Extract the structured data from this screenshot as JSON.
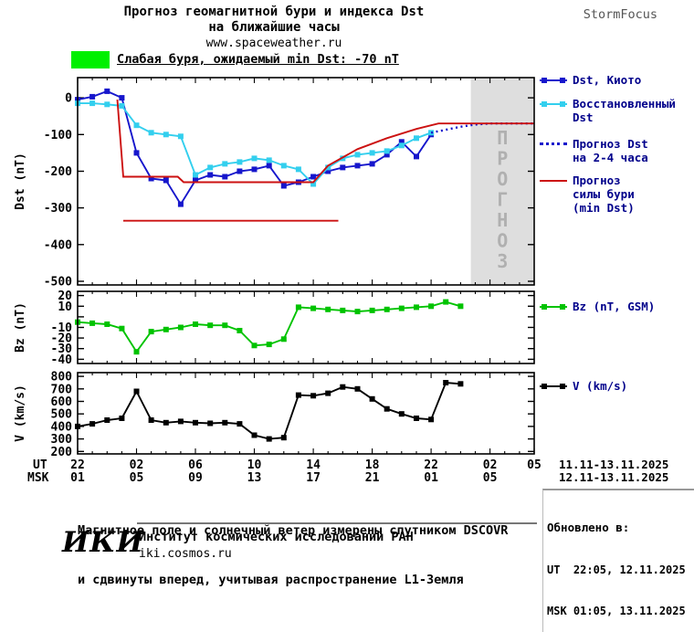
{
  "header": {
    "line1": "Прогноз геомагнитной бури и индекса Dst",
    "line2": "на ближайшие часы",
    "site": "www.spaceweather.ru",
    "brand": "StormFocus"
  },
  "storm_banner": {
    "text": "Слабая буря, ожидаемый min Dst: -70 nT",
    "level_color": "#00f000"
  },
  "chart_data": {
    "type": "line",
    "title": "Прогноз геомагнитной бури и индекса Dst на ближайшие часы",
    "x_hours_range": [
      0,
      31
    ],
    "forecast_band": {
      "from_h": 26.7,
      "to_h": 31,
      "label": "ПРОГНОЗ",
      "fill": "#dedede",
      "text_color": "#b0b0b0"
    },
    "x_axis": {
      "row1_label": "UT",
      "row2_label": "MSK",
      "ticks": [
        {
          "h": 0,
          "ut": "22",
          "msk": "01"
        },
        {
          "h": 4,
          "ut": "02",
          "msk": "05"
        },
        {
          "h": 8,
          "ut": "06",
          "msk": "09"
        },
        {
          "h": 12,
          "ut": "10",
          "msk": "13"
        },
        {
          "h": 16,
          "ut": "14",
          "msk": "17"
        },
        {
          "h": 20,
          "ut": "18",
          "msk": "21"
        },
        {
          "h": 24,
          "ut": "22",
          "msk": "01"
        },
        {
          "h": 28,
          "ut": "02",
          "msk": "05"
        },
        {
          "h": 31,
          "ut": "05",
          "msk": ""
        }
      ],
      "row1_date": "11.11-13.11.2025",
      "row2_date": "12.11-13.11.2025"
    },
    "panels": [
      {
        "id": "dst",
        "ylabel": "Dst (nT)",
        "ylim": [
          -500,
          0
        ],
        "yticks": [
          {
            "v": 0,
            "label": "0"
          },
          {
            "v": -100,
            "label": "-100"
          },
          {
            "v": -200,
            "label": "-200"
          },
          {
            "v": -300,
            "label": "-300"
          },
          {
            "v": -400,
            "label": "-400"
          },
          {
            "v": -500,
            "label": "-500"
          }
        ],
        "series": [
          {
            "name": "dst_kyoto",
            "label": "Dst, Киото",
            "color": "#1616cc",
            "marker": "square",
            "points": [
              [
                0,
                -5
              ],
              [
                1,
                3
              ],
              [
                2,
                18
              ],
              [
                3,
                0
              ],
              [
                4,
                -150
              ],
              [
                5,
                -220
              ],
              [
                6,
                -225
              ],
              [
                7,
                -290
              ],
              [
                8,
                -225
              ],
              [
                9,
                -210
              ],
              [
                10,
                -215
              ],
              [
                11,
                -200
              ],
              [
                12,
                -195
              ],
              [
                13,
                -185
              ],
              [
                14,
                -240
              ],
              [
                15,
                -230
              ],
              [
                16,
                -215
              ],
              [
                17,
                -200
              ],
              [
                18,
                -190
              ],
              [
                19,
                -185
              ],
              [
                20,
                -180
              ],
              [
                21,
                -155
              ],
              [
                22,
                -120
              ],
              [
                23,
                -160
              ],
              [
                24,
                -100
              ]
            ]
          },
          {
            "name": "dst_reconstructed",
            "label": "Восстановленный Dst",
            "color": "#33cfee",
            "marker": "square",
            "points": [
              [
                0,
                -15
              ],
              [
                1,
                -15
              ],
              [
                2,
                -18
              ],
              [
                3,
                -22
              ],
              [
                4,
                -75
              ],
              [
                5,
                -95
              ],
              [
                6,
                -100
              ],
              [
                7,
                -105
              ],
              [
                8,
                -210
              ],
              [
                9,
                -190
              ],
              [
                10,
                -180
              ],
              [
                11,
                -175
              ],
              [
                12,
                -165
              ],
              [
                13,
                -170
              ],
              [
                14,
                -185
              ],
              [
                15,
                -195
              ],
              [
                16,
                -235
              ],
              [
                17,
                -190
              ],
              [
                18,
                -165
              ],
              [
                19,
                -155
              ],
              [
                20,
                -150
              ],
              [
                21,
                -145
              ],
              [
                22,
                -130
              ],
              [
                23,
                -110
              ],
              [
                24,
                -95
              ]
            ]
          },
          {
            "name": "dst_forecast_2_4h",
            "label": "Прогноз Dst на 2-4 часа",
            "color": "#1616cc",
            "style": "dotted",
            "points": [
              [
                24,
                -95
              ],
              [
                25,
                -87
              ],
              [
                26,
                -79
              ],
              [
                27,
                -73
              ],
              [
                28,
                -70
              ],
              [
                31,
                -70
              ]
            ]
          },
          {
            "name": "storm_forecast",
            "label": "Прогноз силы бури (min Dst)",
            "color": "#cc1111",
            "points": [
              [
                2.7,
                -5
              ],
              [
                3.1,
                -215
              ],
              [
                6.8,
                -215
              ],
              [
                7.2,
                -230
              ],
              [
                16,
                -230
              ],
              [
                17,
                -185
              ],
              [
                19,
                -140
              ],
              [
                21,
                -110
              ],
              [
                23,
                -85
              ],
              [
                24.5,
                -70
              ],
              [
                31,
                -70
              ]
            ]
          },
          {
            "name": "storm_min_line",
            "label": "min Dst",
            "color": "#cc1111",
            "points": [
              [
                3.1,
                -335
              ],
              [
                17.7,
                -335
              ]
            ]
          }
        ]
      },
      {
        "id": "bz",
        "ylabel": "Bz (nT)",
        "ylim": [
          -40,
          20
        ],
        "yticks": [
          {
            "v": 20,
            "label": "20"
          },
          {
            "v": 10,
            "label": "10"
          },
          {
            "v": 0,
            "label": ""
          },
          {
            "v": -10,
            "label": "-10"
          },
          {
            "v": -20,
            "label": "-20"
          },
          {
            "v": -30,
            "label": "-30"
          },
          {
            "v": -40,
            "label": "-40"
          }
        ],
        "series": [
          {
            "name": "bz_gsm",
            "label": "Bz (nT, GSM)",
            "color": "#00c300",
            "marker": "square",
            "points": [
              [
                0,
                -5
              ],
              [
                1,
                -6
              ],
              [
                2,
                -7
              ],
              [
                3,
                -11
              ],
              [
                4,
                -33
              ],
              [
                5,
                -14
              ],
              [
                6,
                -12
              ],
              [
                7,
                -10
              ],
              [
                8,
                -7
              ],
              [
                9,
                -8
              ],
              [
                10,
                -8
              ],
              [
                11,
                -13
              ],
              [
                12,
                -27
              ],
              [
                13,
                -26
              ],
              [
                14,
                -21
              ],
              [
                15,
                9
              ],
              [
                16,
                8
              ],
              [
                17,
                7
              ],
              [
                18,
                6
              ],
              [
                19,
                5
              ],
              [
                20,
                6
              ],
              [
                21,
                7
              ],
              [
                22,
                8
              ],
              [
                23,
                9
              ],
              [
                24,
                10
              ],
              [
                25,
                14
              ],
              [
                26,
                10
              ]
            ]
          }
        ]
      },
      {
        "id": "v",
        "ylabel": "V (km/s)",
        "ylim": [
          200,
          800
        ],
        "yticks": [
          {
            "v": 800,
            "label": "800"
          },
          {
            "v": 700,
            "label": "700"
          },
          {
            "v": 600,
            "label": "600"
          },
          {
            "v": 500,
            "label": "500"
          },
          {
            "v": 400,
            "label": "400"
          },
          {
            "v": 300,
            "label": "300"
          },
          {
            "v": 200,
            "label": "200"
          }
        ],
        "series": [
          {
            "name": "v_sw",
            "label": "V (km/s)",
            "color": "#000000",
            "marker": "square",
            "points": [
              [
                0,
                400
              ],
              [
                1,
                420
              ],
              [
                2,
                450
              ],
              [
                3,
                465
              ],
              [
                4,
                680
              ],
              [
                5,
                450
              ],
              [
                6,
                430
              ],
              [
                7,
                440
              ],
              [
                8,
                430
              ],
              [
                9,
                425
              ],
              [
                10,
                430
              ],
              [
                11,
                420
              ],
              [
                12,
                330
              ],
              [
                13,
                300
              ],
              [
                14,
                310
              ],
              [
                15,
                650
              ],
              [
                16,
                645
              ],
              [
                17,
                665
              ],
              [
                18,
                715
              ],
              [
                19,
                700
              ],
              [
                20,
                620
              ],
              [
                21,
                540
              ],
              [
                22,
                500
              ],
              [
                23,
                465
              ],
              [
                24,
                455
              ],
              [
                25,
                750
              ],
              [
                26,
                740
              ]
            ]
          }
        ]
      }
    ],
    "legend": [
      {
        "series": "dst_kyoto",
        "sample": "squares",
        "lines": [
          "Dst, Киото"
        ]
      },
      {
        "series": "dst_reconstructed",
        "sample": "squares",
        "lines": [
          "Восстановленный",
          "Dst"
        ]
      },
      {
        "series": "dst_forecast_2_4h",
        "sample": "dotted",
        "lines": [
          "Прогноз Dst",
          "на 2-4 часа"
        ]
      },
      {
        "series": "storm_forecast",
        "sample": "line",
        "lines": [
          "Прогноз",
          "силы бури",
          "(min Dst)"
        ]
      },
      {
        "series": "bz_gsm",
        "sample": "squares",
        "lines": [
          "Bz (nT, GSM)"
        ]
      },
      {
        "series": "v_sw",
        "sample": "squares",
        "lines": [
          "V (km/s)"
        ]
      }
    ]
  },
  "footnote": {
    "line1": "Магнитное поле и солнечный ветер измерены спутником DSCOVR",
    "line2": "и сдвинуты вперед, учитывая распространение L1-Земля"
  },
  "updated": {
    "heading": "Обновлено в:",
    "ut": "UT  22:05, 12.11.2025",
    "msk": "MSK 01:05, 13.11.2025"
  },
  "footer": {
    "logo": "ИКИ",
    "institute": "Институт космических исследований РАН",
    "site": "iki.cosmos.ru"
  }
}
